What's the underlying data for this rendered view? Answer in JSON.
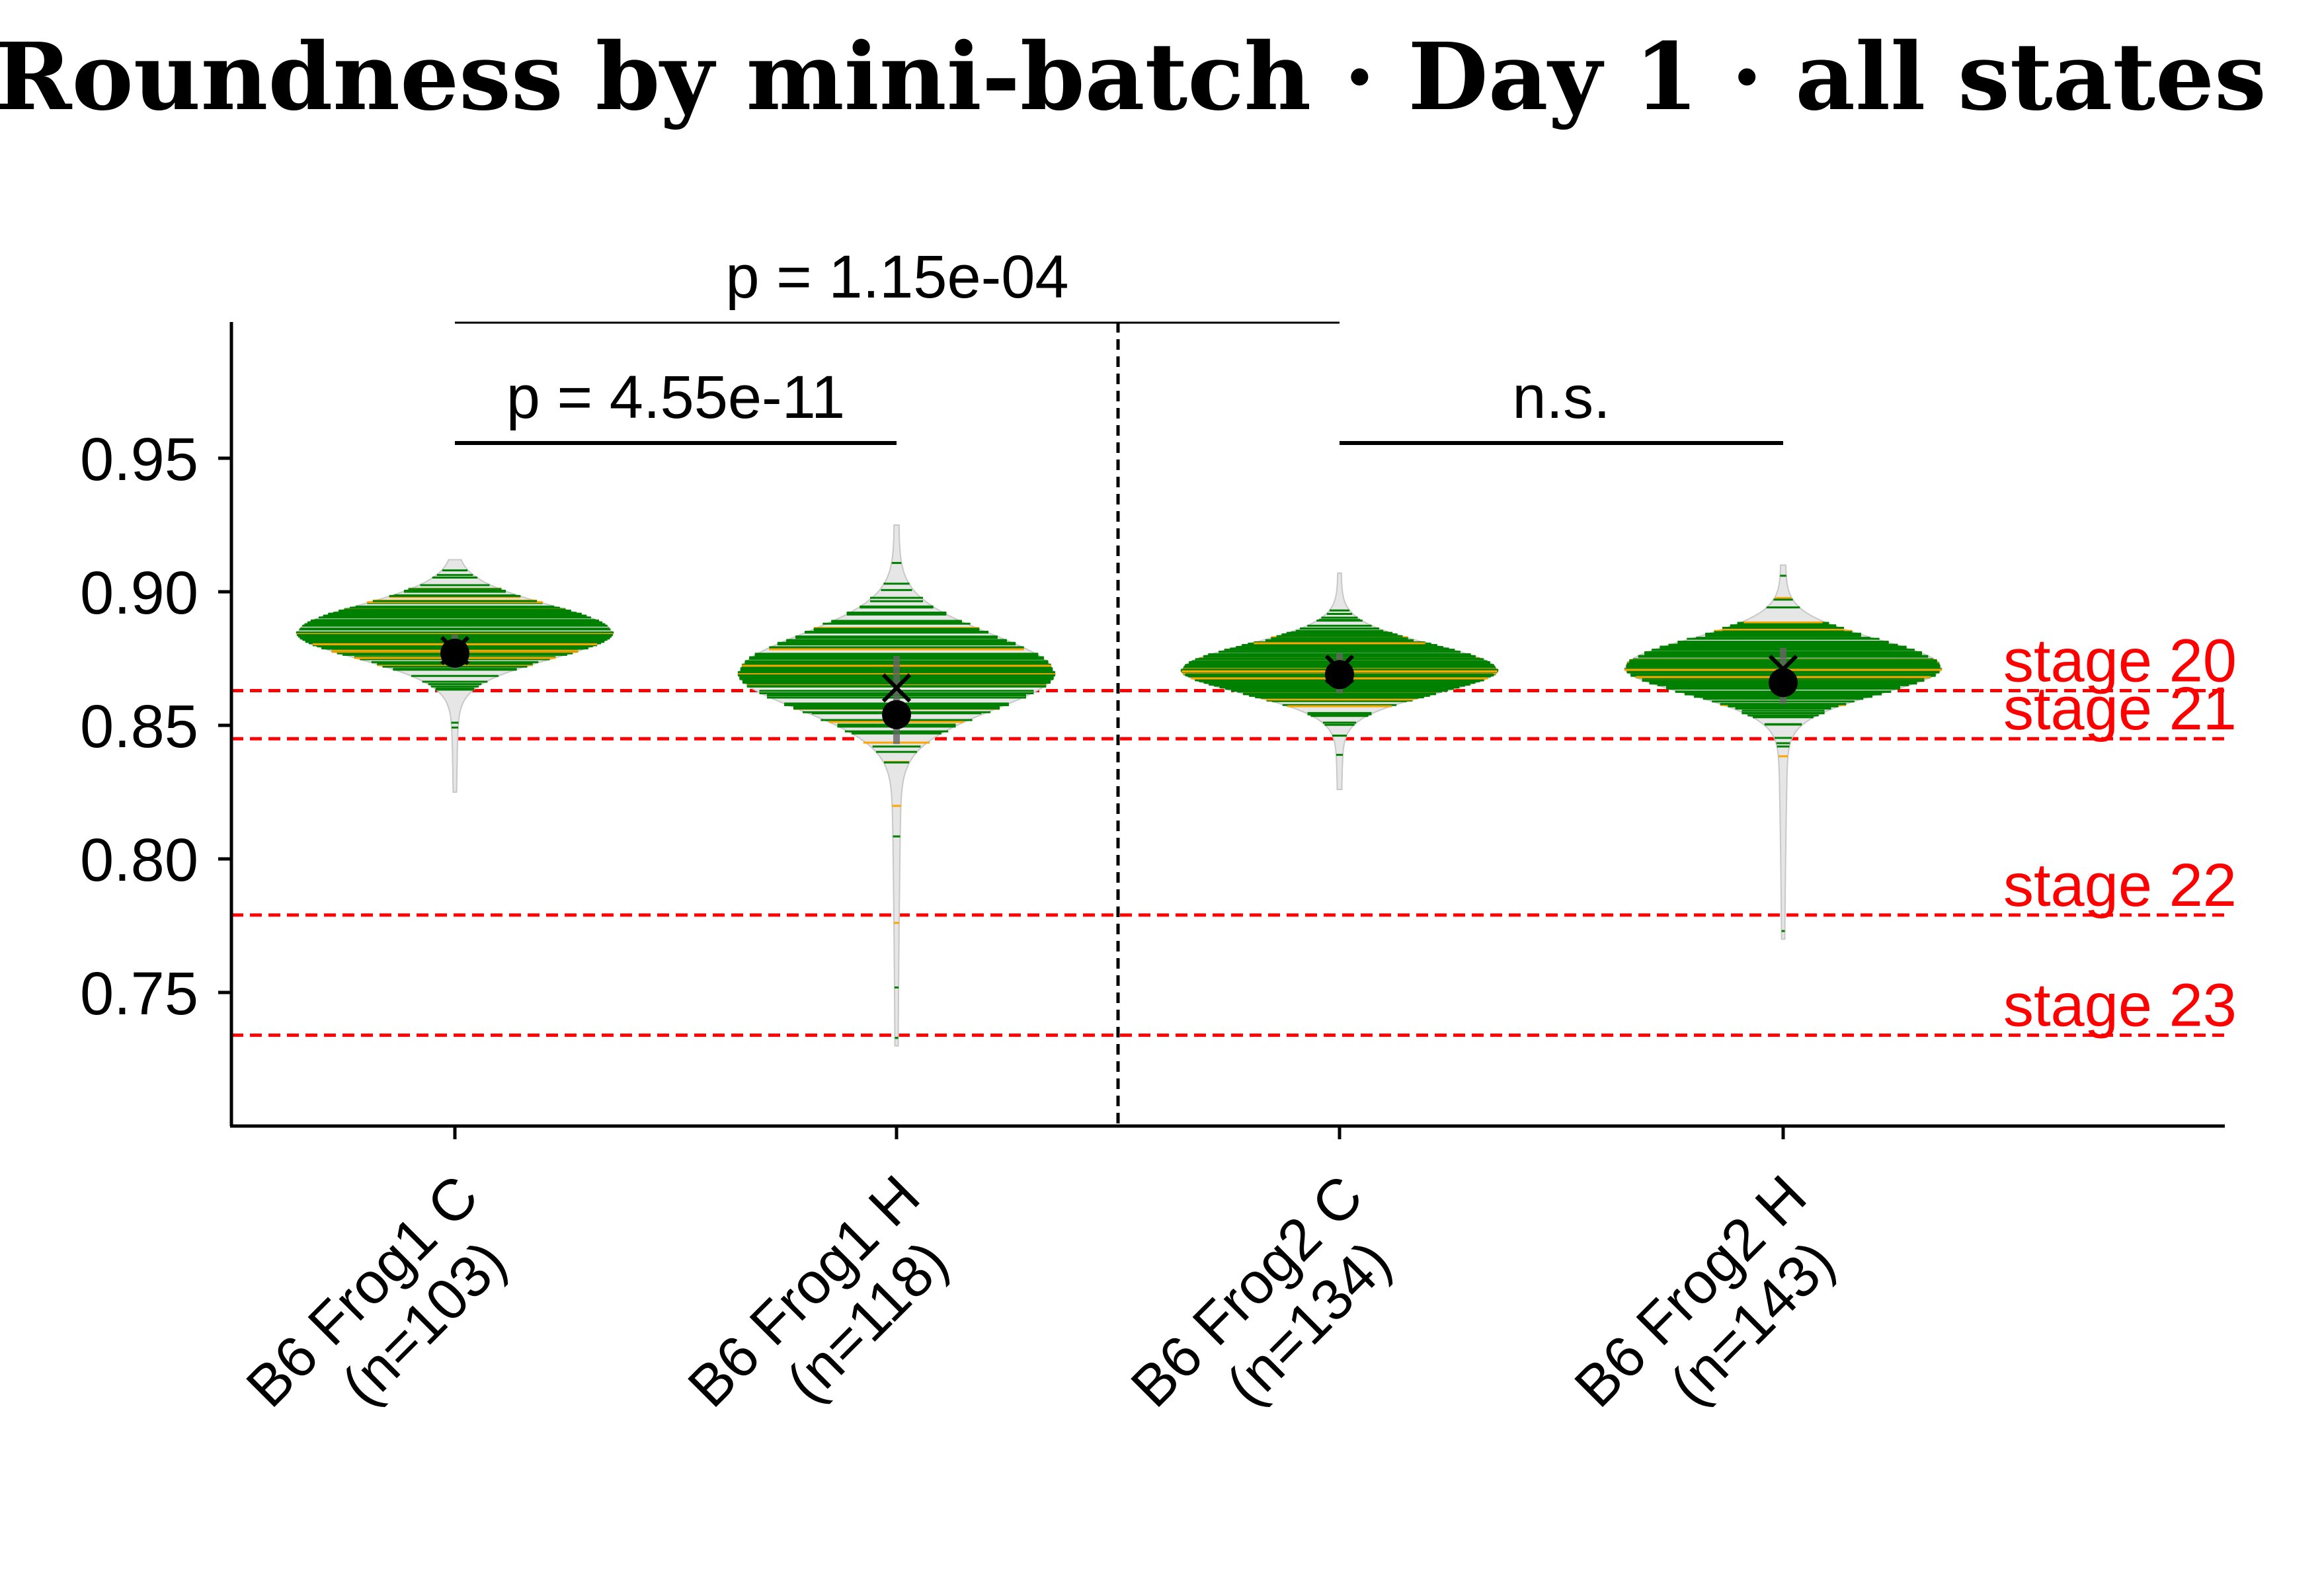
{
  "chart_data": {
    "type": "violin",
    "title": "Roundness by mini-batch · Day 1 · all states",
    "xlabel": "",
    "ylabel": "",
    "ylim": [
      0.7,
      1.0
    ],
    "yticks": [
      "0.95",
      "0.90",
      "0.85",
      "0.80",
      "0.75"
    ],
    "ytick_values": [
      0.95,
      0.9,
      0.85,
      0.8,
      0.75
    ],
    "grid": false,
    "colors": {
      "violin_fill": "#e6e6e6",
      "observation_line": "#008000",
      "observation_accent": "#ffa500",
      "mean_marker": "#000000",
      "reference_line": "#ff0000",
      "axis": "#000000"
    },
    "groups": [
      {
        "label_line1": "B6 Frog1 C",
        "label_line2": "(n=103)",
        "n": 103,
        "min": 0.825,
        "max": 0.912,
        "peak": 0.885,
        "spread": 0.01,
        "mean": 0.877,
        "median": 0.878,
        "q1": 0.871,
        "q3": 0.884
      },
      {
        "label_line1": "B6 Frog1 H",
        "label_line2": "(n=118)",
        "n": 118,
        "min": 0.73,
        "max": 0.925,
        "peak": 0.87,
        "spread": 0.014,
        "mean": 0.854,
        "median": 0.864,
        "q1": 0.843,
        "q3": 0.876
      },
      {
        "label_line1": "B6 Frog2 C",
        "label_line2": "(n=134)",
        "n": 134,
        "min": 0.826,
        "max": 0.907,
        "peak": 0.871,
        "spread": 0.009,
        "mean": 0.869,
        "median": 0.871,
        "q1": 0.862,
        "q3": 0.877
      },
      {
        "label_line1": "B6 Frog2 H",
        "label_line2": "(n=143)",
        "n": 143,
        "min": 0.77,
        "max": 0.91,
        "peak": 0.872,
        "spread": 0.01,
        "mean": 0.866,
        "median": 0.871,
        "q1": 0.858,
        "q3": 0.879
      }
    ],
    "reference_lines": [
      {
        "label": "stage 20",
        "y": 0.863
      },
      {
        "label": "stage 21",
        "y": 0.845
      },
      {
        "label": "stage 22",
        "y": 0.779
      },
      {
        "label": "stage 23",
        "y": 0.734
      }
    ],
    "separator_between_groups": [
      1,
      2
    ],
    "comparisons": [
      {
        "from": 0,
        "to": 1,
        "label": "p = 4.55e-11",
        "level": 0
      },
      {
        "from": 2,
        "to": 3,
        "label": "n.s.",
        "level": 0
      },
      {
        "from": 0,
        "to": 2,
        "label": "p = 1.15e-04",
        "level": 1
      }
    ]
  }
}
